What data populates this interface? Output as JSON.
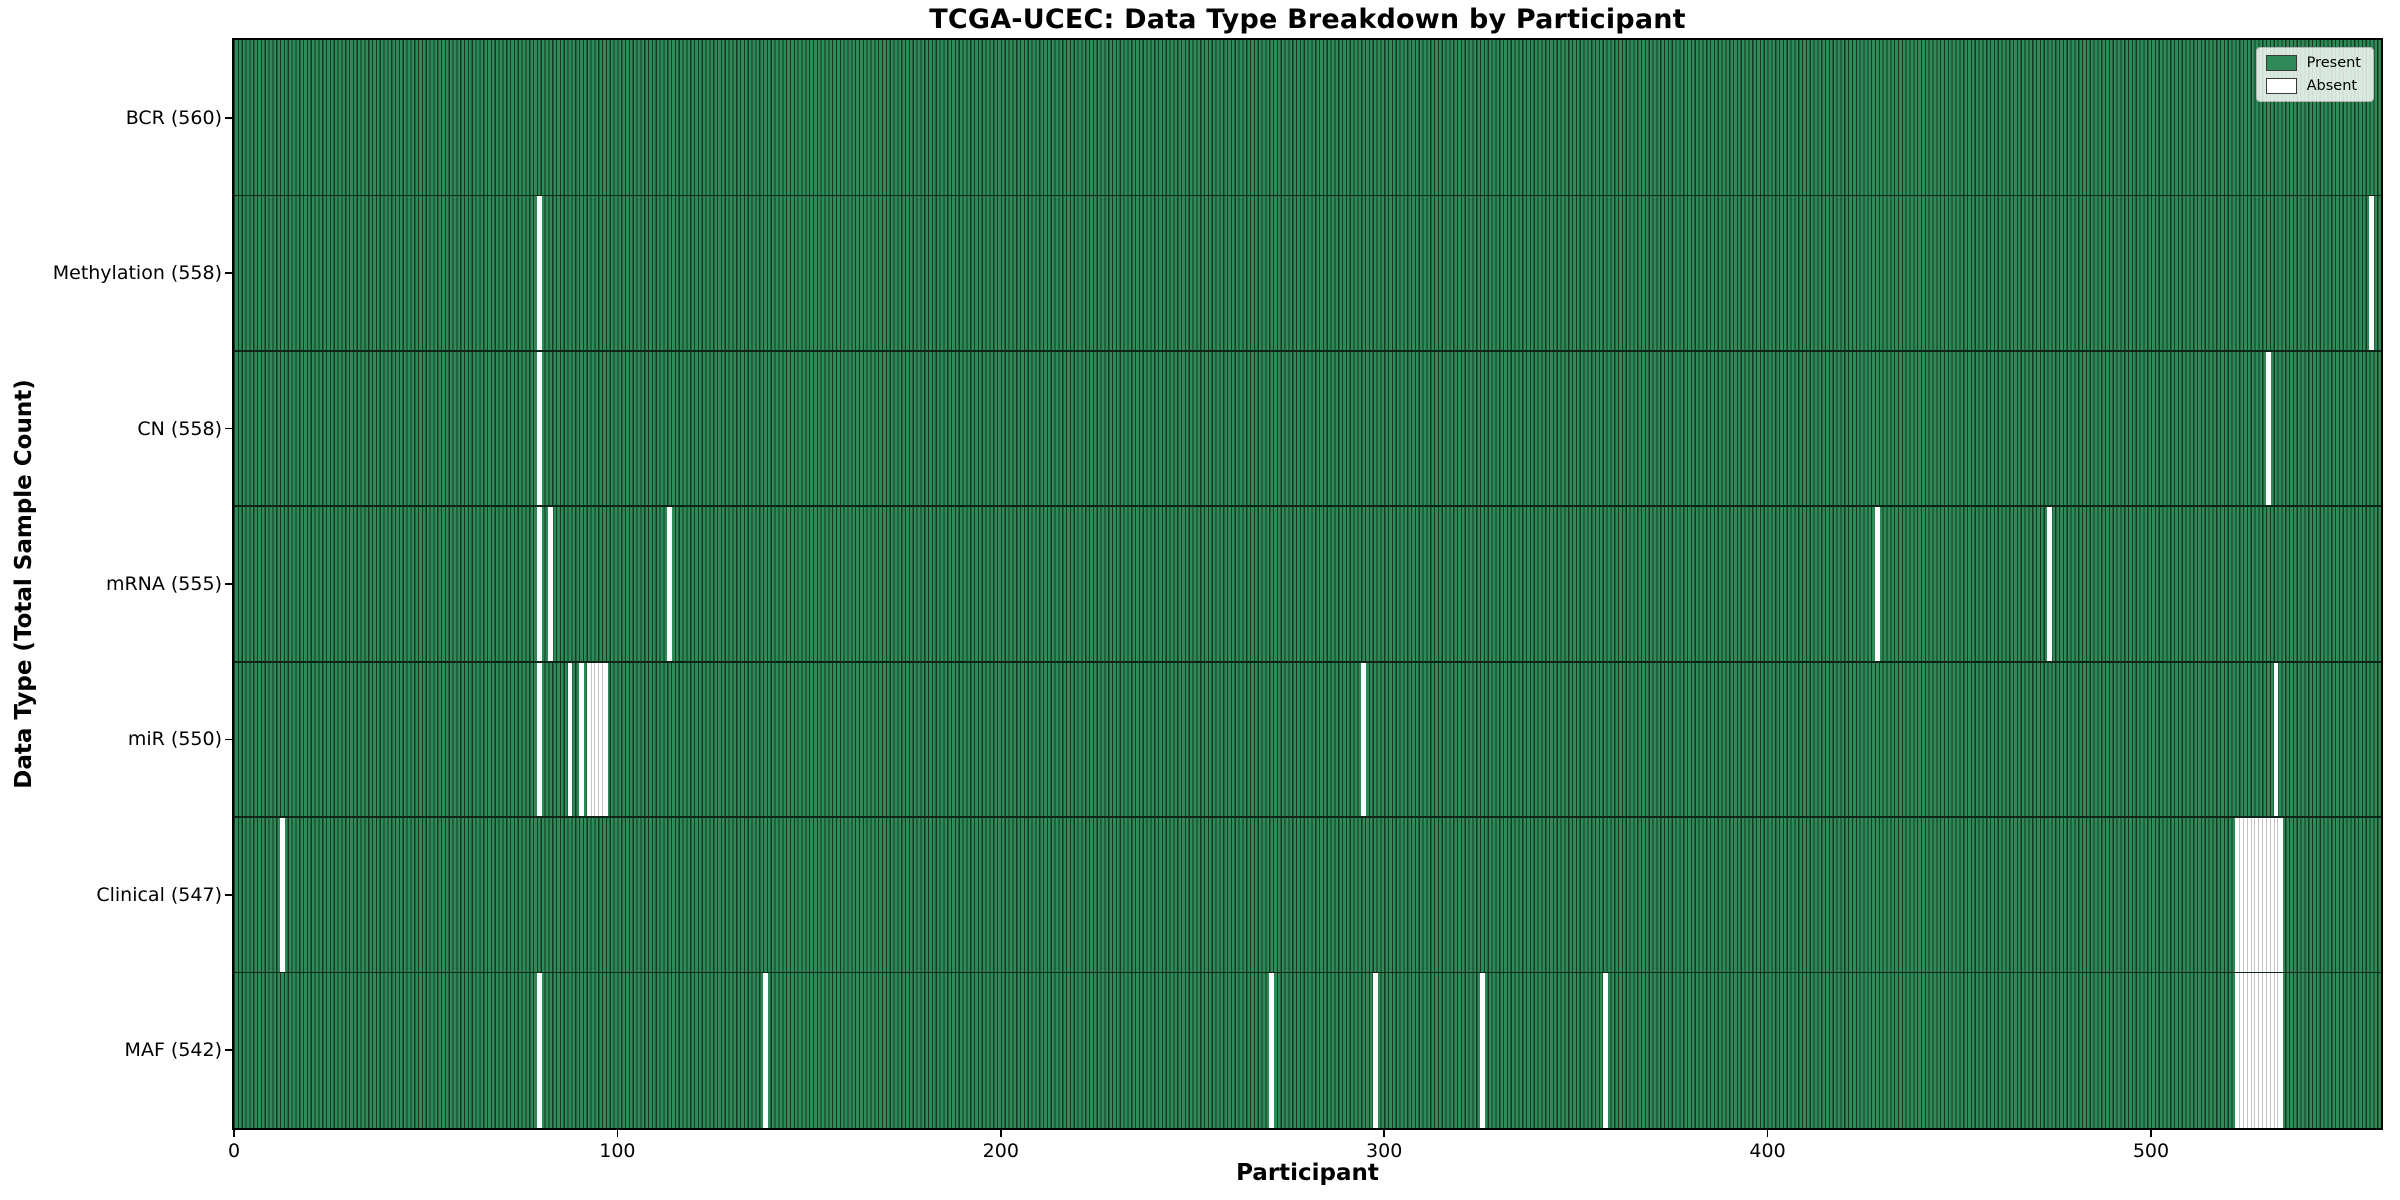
{
  "chart_data": {
    "type": "heatmap",
    "title": "TCGA-UCEC: Data Type Breakdown by Participant",
    "xlabel": "Participant",
    "ylabel": "Data Type (Total Sample Count)",
    "n_participants": 560,
    "x_ticks": [
      0,
      100,
      200,
      300,
      400,
      500
    ],
    "grid": false,
    "legend_position": "upper right",
    "legend": [
      {
        "label": "Present",
        "color": "#2e8b57",
        "edge": "#3a3a3a"
      },
      {
        "label": "Absent",
        "color": "#ffffff",
        "edge": "#3a3a3a"
      }
    ],
    "colors": {
      "present_fill": "#2e8b57",
      "present_edge": "#123a23",
      "absent_fill": "#ffffff",
      "absent_edge": "#c4c4c4",
      "row_boundary": "#0c2517",
      "spine": "#000000"
    },
    "rows": [
      {
        "name": "BCR",
        "label": "BCR (560)",
        "total": 560,
        "absent": []
      },
      {
        "name": "Methylation",
        "label": "Methylation (558)",
        "total": 558,
        "absent": [
          79,
          557
        ]
      },
      {
        "name": "CN",
        "label": "CN (558)",
        "total": 558,
        "absent": [
          79,
          530
        ]
      },
      {
        "name": "mRNA",
        "label": "mRNA (555)",
        "total": 555,
        "absent": [
          79,
          82,
          113,
          428,
          473
        ]
      },
      {
        "name": "miR",
        "label": "miR (550)",
        "total": 550,
        "absent": [
          79,
          87,
          90,
          92,
          93,
          94,
          95,
          96,
          294,
          532
        ]
      },
      {
        "name": "Clinical",
        "label": "Clinical (547)",
        "total": 547,
        "absent": [
          12,
          522,
          523,
          524,
          525,
          526,
          527,
          528,
          529,
          530,
          531,
          532,
          533
        ]
      },
      {
        "name": "MAF",
        "label": "MAF (542)",
        "total": 542,
        "absent": [
          79,
          138,
          270,
          297,
          325,
          357,
          522,
          523,
          524,
          525,
          526,
          527,
          528,
          529,
          530,
          531,
          532,
          533
        ]
      }
    ]
  }
}
